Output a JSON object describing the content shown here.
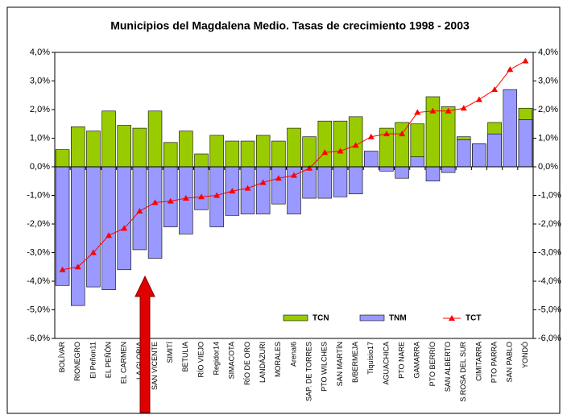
{
  "chart_data": {
    "type": "bar",
    "title": "Municipios del Magdalena Medio. Tasas de crecimiento 1998 - 2003",
    "categories": [
      "BOLÍVAR",
      "RIONEGRO",
      "El Peñon11",
      "EL PEÑÓN",
      "EL CARMEN",
      "LA GLORIA",
      "SAN VICENTE",
      "SIMITÍ",
      "BETULIA",
      "RÍO VIEJO",
      "Regidor14",
      "SIMACOTA",
      "RÍO DE ORO",
      "LANDÁZURI",
      "MORALES",
      "Arenal6",
      "SAP. DE TORRES",
      "PTO WILCHES",
      "SAN MARTÍN",
      "B/BERMEJA",
      "Tiquisio17",
      "AGUACHICA",
      "PTO NARE",
      "GAMARRA",
      "PTO BERRÍO",
      "SAN ALBERTO",
      "S.ROSA DEL SUR",
      "CIMITARRA",
      "PTO PARRA",
      "SAN PABLO",
      "YONDÓ"
    ],
    "series": [
      {
        "name": "TCN",
        "color": "#99cc00",
        "values": [
          0.6,
          1.4,
          1.25,
          1.95,
          1.45,
          1.35,
          1.95,
          0.85,
          1.25,
          0.45,
          1.1,
          0.9,
          0.9,
          1.1,
          0.9,
          1.35,
          1.05,
          1.6,
          1.6,
          1.75,
          null,
          1.35,
          1.55,
          1.5,
          2.45,
          2.1,
          1.05,
          0.8,
          1.55,
          null,
          2.05
        ]
      },
      {
        "name": "TNM",
        "color": "#9999ff",
        "values": [
          -4.15,
          -4.85,
          -4.2,
          -4.3,
          -3.6,
          -2.9,
          -3.2,
          -2.1,
          -2.35,
          -1.5,
          -2.1,
          -1.7,
          -1.65,
          -1.65,
          -1.3,
          -1.65,
          -1.1,
          -1.1,
          -1.05,
          -0.95,
          0.55,
          -0.15,
          -0.4,
          0.35,
          -0.5,
          -0.2,
          0.95,
          0.8,
          1.15,
          2.7,
          1.65
        ]
      },
      {
        "name": "TCT",
        "color": "#ff0000",
        "type": "line",
        "values": [
          -3.6,
          -3.5,
          -3.0,
          -2.4,
          -2.15,
          -1.55,
          -1.25,
          -1.2,
          -1.1,
          -1.05,
          -1.0,
          -0.85,
          -0.75,
          -0.55,
          -0.4,
          -0.3,
          -0.05,
          0.5,
          0.55,
          0.75,
          1.05,
          1.15,
          1.15,
          1.9,
          1.95,
          1.95,
          2.05,
          2.35,
          2.7,
          3.4,
          3.7
        ]
      }
    ],
    "ylim": [
      -6,
      4
    ],
    "yticks": [
      {
        "value": -6,
        "label": "-6,0%"
      },
      {
        "value": -5,
        "label": "-5,0%"
      },
      {
        "value": -4,
        "label": "-4,0%"
      },
      {
        "value": -3,
        "label": "-3,0%"
      },
      {
        "value": -2,
        "label": "-2,0%"
      },
      {
        "value": -1,
        "label": "-1,0%"
      },
      {
        "value": 0,
        "label": "0,0%"
      },
      {
        "value": 1,
        "label": "1,0%"
      },
      {
        "value": 2,
        "label": "2,0%"
      },
      {
        "value": 3,
        "label": "3,0%"
      },
      {
        "value": 4,
        "label": "4,0%"
      }
    ],
    "y2lim": [
      -6,
      4
    ],
    "y2ticks": [
      {
        "value": -6,
        "label": "-6,0%"
      },
      {
        "value": -5,
        "label": "-5,0%"
      },
      {
        "value": -4,
        "label": "-4,0%"
      },
      {
        "value": -3,
        "label": "-3,0%"
      },
      {
        "value": -2,
        "label": "-2,0%"
      },
      {
        "value": -1,
        "label": "-1,0%"
      },
      {
        "value": 0,
        "label": "0,0%"
      },
      {
        "value": 1,
        "label": "1,0%"
      },
      {
        "value": 2,
        "label": "2,0%"
      },
      {
        "value": 3,
        "label": "3,0%"
      },
      {
        "value": 4,
        "label": "4,0%"
      }
    ],
    "legend": "lower right"
  }
}
